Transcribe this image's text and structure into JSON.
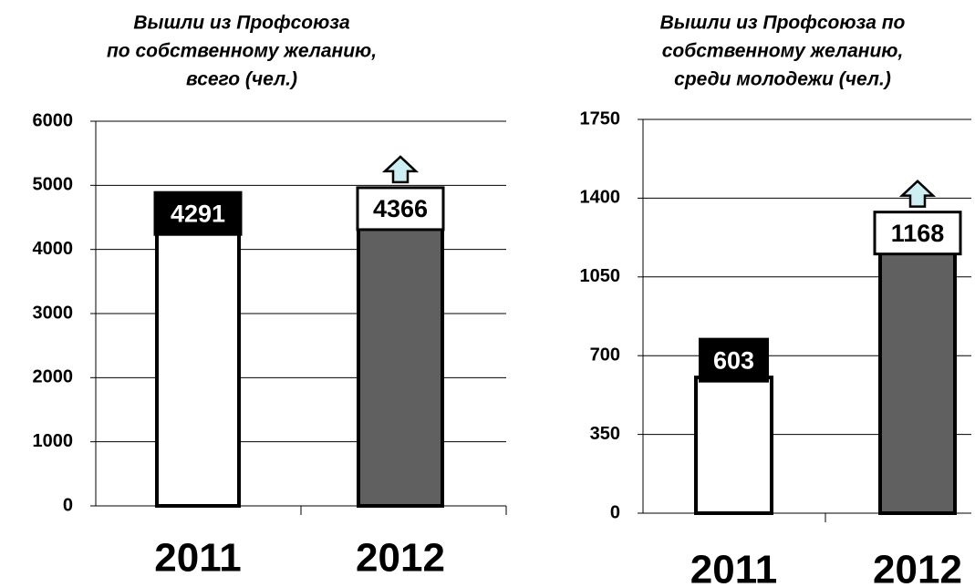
{
  "chart_data": [
    {
      "type": "bar",
      "title": [
        "Вышли из Профсоюза",
        "по собственному желанию,",
        "всего (чел.)"
      ],
      "categories": [
        "2011",
        "2012"
      ],
      "values": [
        4291,
        4366
      ],
      "colors": [
        "#ffffff",
        "#606060"
      ],
      "ylim": [
        0,
        6000
      ],
      "yticks": [
        0,
        1000,
        2000,
        3000,
        4000,
        5000,
        6000
      ],
      "grid": true
    },
    {
      "type": "bar",
      "title": [
        "Вышли из Профсоюза по",
        "собственному желанию,",
        "среди молодежи (чел.)"
      ],
      "categories": [
        "2011",
        "2012"
      ],
      "values": [
        603,
        1168
      ],
      "colors": [
        "#ffffff",
        "#606060"
      ],
      "ylim": [
        0,
        1750
      ],
      "yticks": [
        0,
        350,
        700,
        1050,
        1400,
        1750
      ],
      "grid": true
    }
  ]
}
